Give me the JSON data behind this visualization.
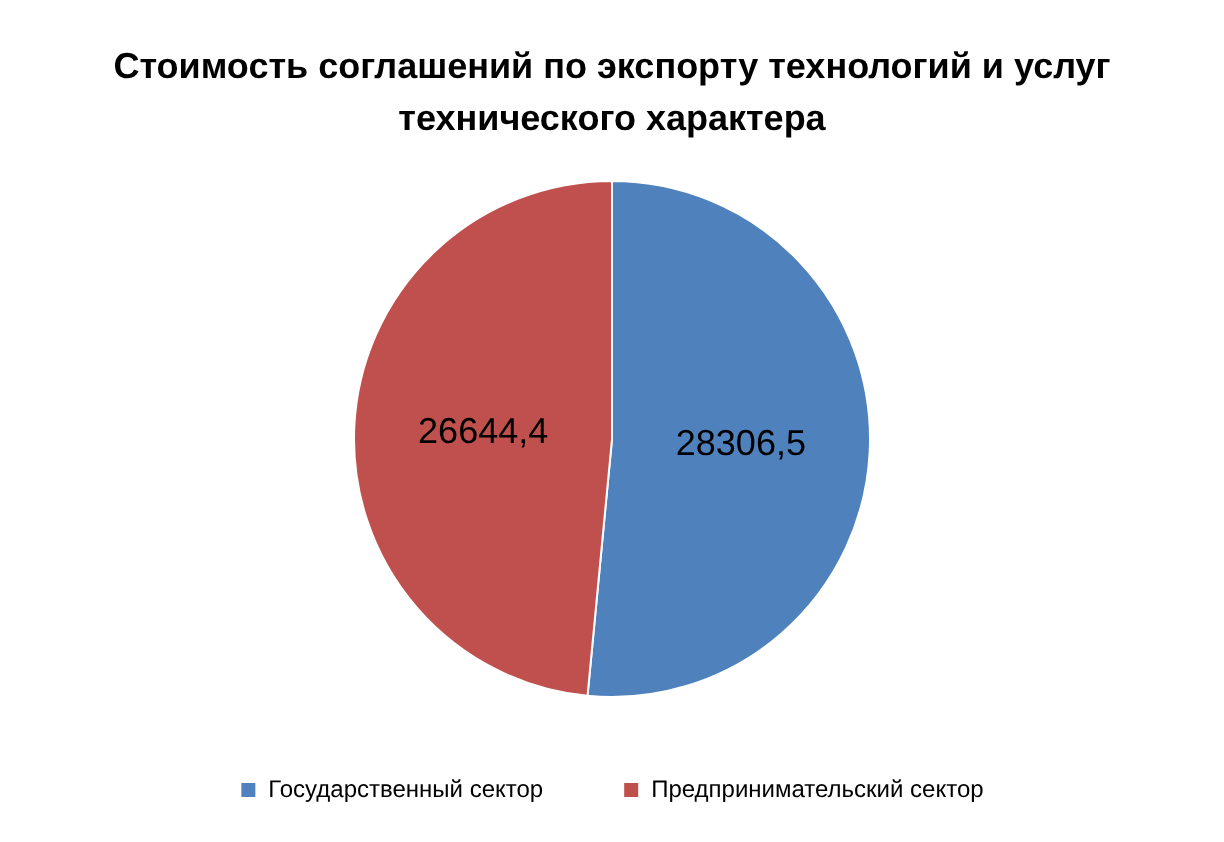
{
  "chart_data": {
    "type": "pie",
    "title": "Стоимость соглашений по экспорту технологий и услуг технического характера",
    "categories": [
      "Государственный сектор",
      "Предпринимательский сектор"
    ],
    "values": [
      28306.5,
      26644.4
    ],
    "colors": [
      "#4f81bd",
      "#c0504d"
    ],
    "value_labels": [
      "28306,5",
      "26644,4"
    ],
    "legend": "bottom"
  }
}
